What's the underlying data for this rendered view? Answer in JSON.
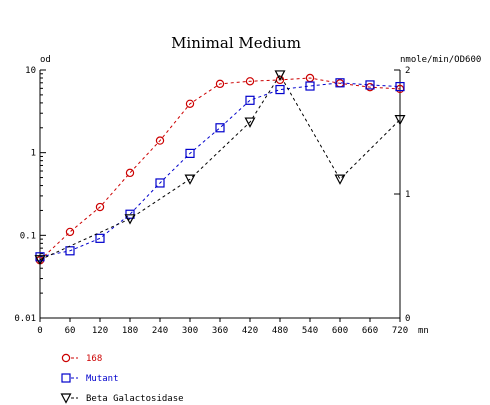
{
  "chart_data": {
    "type": "line",
    "title": "Minimal Medium",
    "ylabel_left": "od",
    "ylabel_right": "nmole/min/OD600",
    "xlabel": "mn",
    "x": [
      0,
      60,
      120,
      180,
      240,
      300,
      360,
      420,
      480,
      540,
      600,
      660,
      720
    ],
    "x_tick_labels": [
      "0",
      "60",
      "120",
      "180",
      "240",
      "300",
      "360",
      "420",
      "480",
      "540",
      "600",
      "660",
      "720"
    ],
    "xlim": [
      0,
      720
    ],
    "y_left": {
      "scale": "log",
      "lim": [
        0.01,
        10
      ],
      "ticks": [
        0.01,
        0.1,
        1,
        10
      ],
      "tick_labels": [
        "0.01",
        "0.1",
        "1",
        "10"
      ]
    },
    "y_right": {
      "scale": "linear",
      "lim": [
        0,
        2
      ],
      "ticks": [
        0,
        1,
        2
      ],
      "tick_labels": [
        "0",
        "1",
        "2"
      ]
    },
    "grid": false,
    "legend_position": "bottom-left",
    "series": [
      {
        "name": "168",
        "axis": "left",
        "marker": "circle",
        "color": "#cc0000",
        "x": [
          0,
          60,
          120,
          180,
          240,
          300,
          360,
          420,
          480,
          540,
          600,
          660,
          720
        ],
        "values": [
          0.05,
          0.11,
          0.22,
          0.57,
          1.4,
          3.9,
          6.8,
          7.3,
          7.6,
          8.0,
          6.9,
          6.2,
          5.9
        ]
      },
      {
        "name": "Mutant",
        "axis": "left",
        "marker": "square",
        "color": "#0000cc",
        "x": [
          0,
          60,
          120,
          180,
          240,
          300,
          360,
          420,
          480,
          540,
          600,
          660,
          720
        ],
        "values": [
          0.055,
          0.065,
          0.092,
          0.18,
          0.43,
          0.98,
          2.0,
          4.3,
          5.8,
          6.4,
          7.0,
          6.6,
          6.3
        ]
      },
      {
        "name": "Beta Galactosidase",
        "axis": "right",
        "marker": "triangle-down",
        "color": "#000000",
        "x": [
          0,
          180,
          300,
          420,
          480,
          600,
          720
        ],
        "values": [
          0.47,
          0.8,
          1.12,
          1.58,
          1.96,
          1.12,
          1.6
        ]
      }
    ]
  }
}
